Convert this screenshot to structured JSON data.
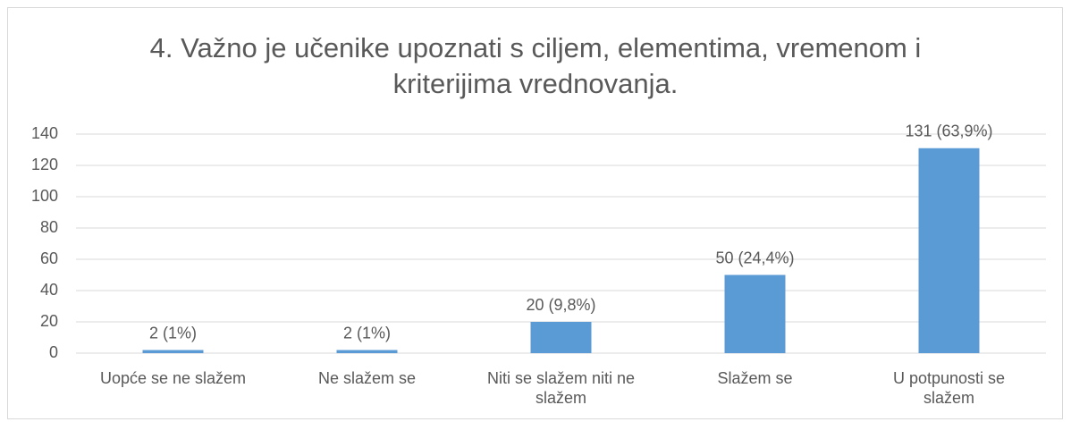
{
  "chart_data": {
    "type": "bar",
    "title": "4. Važno je učenike upoznati s ciljem, elementima, vremenom i kriterijima vrednovanja.",
    "categories": [
      "Uopće se ne slažem",
      "Ne slažem se",
      "Niti se slažem niti ne slažem",
      "Slažem se",
      "U potpunosti se slažem"
    ],
    "values": [
      2,
      2,
      20,
      50,
      131
    ],
    "value_labels": [
      "2 (1%)",
      "2 (1%)",
      "20 (9,8%)",
      "50 (24,4%)",
      "131 (63,9%)"
    ],
    "color": "#5b9bd5",
    "ylim": [
      0,
      140
    ],
    "yticks": [
      0,
      20,
      40,
      60,
      80,
      100,
      120,
      140
    ],
    "grid": true
  }
}
